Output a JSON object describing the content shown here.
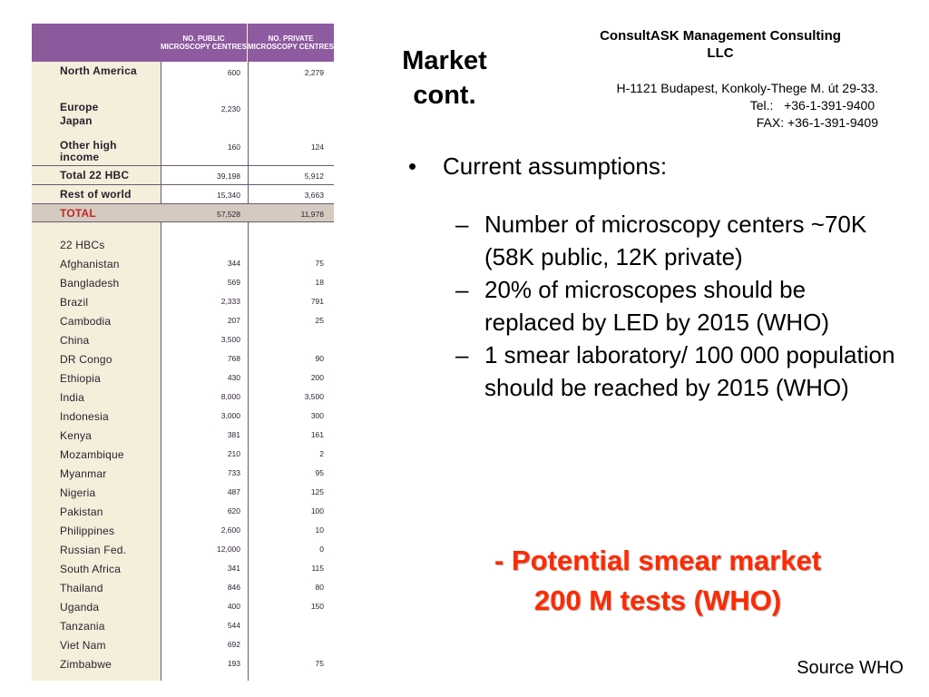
{
  "table": {
    "header": {
      "public": "NO. PUBLIC MICROSCOPY CENTRES",
      "private": "NO. PRIVATE MICROSCOPY CENTRES"
    },
    "regions": [
      {
        "label": "North America",
        "public": "600",
        "private": "2,279"
      },
      {
        "label": "Europe",
        "public": "2,230",
        "private": ""
      },
      {
        "label": "Japan",
        "public": "",
        "private": ""
      },
      {
        "label": "Other high income",
        "public": "160",
        "private": "124"
      }
    ],
    "total22": {
      "label": "Total 22 HBC",
      "public": "39,198",
      "private": "5,912"
    },
    "rest": {
      "label": "Rest of world",
      "public": "15,340",
      "private": "3,663"
    },
    "total": {
      "label": "TOTAL",
      "public": "57,528",
      "private": "11,978"
    },
    "hbc_heading": "22 HBCs",
    "countries": [
      {
        "label": "Afghanistan",
        "public": "344",
        "private": "75"
      },
      {
        "label": "Bangladesh",
        "public": "569",
        "private": "18"
      },
      {
        "label": "Brazil",
        "public": "2,333",
        "private": "791"
      },
      {
        "label": "Cambodia",
        "public": "207",
        "private": "25"
      },
      {
        "label": "China",
        "public": "3,500",
        "private": ""
      },
      {
        "label": "DR Congo",
        "public": "768",
        "private": "90"
      },
      {
        "label": "Ethiopia",
        "public": "430",
        "private": "200"
      },
      {
        "label": "India",
        "public": "8,000",
        "private": "3,500"
      },
      {
        "label": "Indonesia",
        "public": "3,000",
        "private": "300"
      },
      {
        "label": "Kenya",
        "public": "381",
        "private": "161"
      },
      {
        "label": "Mozambique",
        "public": "210",
        "private": "2"
      },
      {
        "label": "Myanmar",
        "public": "733",
        "private": "95"
      },
      {
        "label": "Nigeria",
        "public": "487",
        "private": "125"
      },
      {
        "label": "Pakistan",
        "public": "620",
        "private": "100"
      },
      {
        "label": "Philippines",
        "public": "2,600",
        "private": "10"
      },
      {
        "label": "Russian Fed.",
        "public": "12,000",
        "private": "0"
      },
      {
        "label": "South Africa",
        "public": "341",
        "private": "115"
      },
      {
        "label": "Thailand",
        "public": "846",
        "private": "80"
      },
      {
        "label": "Uganda",
        "public": "400",
        "private": "150"
      },
      {
        "label": "Tanzania",
        "public": "544",
        "private": ""
      },
      {
        "label": "Viet Nam",
        "public": "692",
        "private": ""
      },
      {
        "label": "Zimbabwe",
        "public": "193",
        "private": "75"
      }
    ]
  },
  "title": {
    "line1": "Market",
    "line2": "cont."
  },
  "company": {
    "line1": "ConsultASK Management Consulting",
    "line2": "LLC"
  },
  "address": {
    "street": "H-1121 Budapest, Konkoly-Thege M. út 29-33.",
    "tel": "Tel.:   +36-1-391-9400 ",
    "fax": "FAX: +36-1-391-9409"
  },
  "bullets": {
    "main": "Current assumptions:",
    "sub": [
      "Number of microscopy centers ~70K (58K public, 12K private)",
      "20% of microscopes should be replaced by LED by 2015 (WHO)",
      "1 smear laboratory/ 100 000 population should be reached by 2015 (WHO)"
    ],
    "bullet_char": "•",
    "dash_char": "–"
  },
  "market": {
    "line1": "- Potential smear market",
    "line2": "200 M tests (WHO)"
  },
  "source": "Source WHO",
  "colors": {
    "table_header": "#8e5aa0",
    "total_text": "#c0282b",
    "market_text": "#ff2a00"
  }
}
